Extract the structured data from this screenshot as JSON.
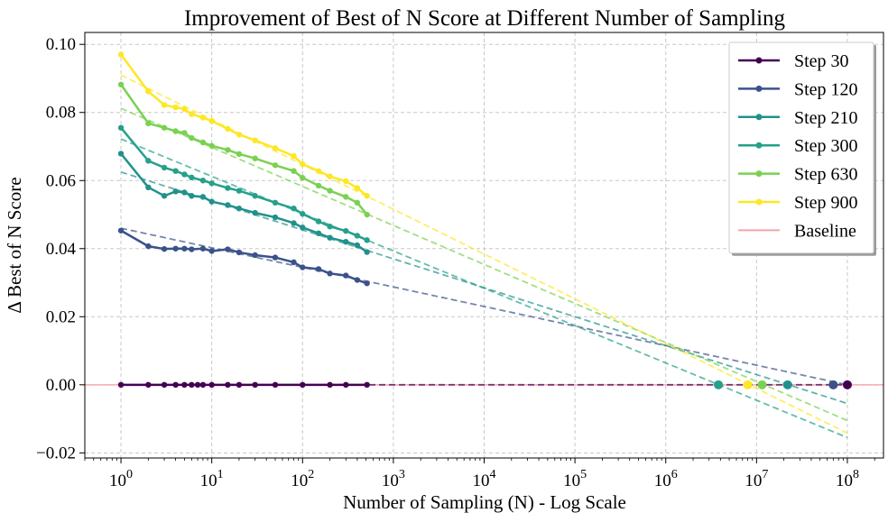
{
  "chart_data": {
    "type": "line",
    "title": "Improvement of Best of N Score at Different Number of Sampling",
    "xlabel": "Number of Sampling (N) - Log Scale",
    "ylabel": "Δ Best of N Score",
    "xscale": "log",
    "xlim": [
      0.4,
      250000000
    ],
    "ylim": [
      -0.0215,
      0.1035
    ],
    "xticks": [
      {
        "value": 1,
        "base": "10",
        "exp": "0"
      },
      {
        "value": 10,
        "base": "10",
        "exp": "1"
      },
      {
        "value": 100,
        "base": "10",
        "exp": "2"
      },
      {
        "value": 1000,
        "base": "10",
        "exp": "3"
      },
      {
        "value": 10000,
        "base": "10",
        "exp": "4"
      },
      {
        "value": 100000,
        "base": "10",
        "exp": "5"
      },
      {
        "value": 1000000,
        "base": "10",
        "exp": "6"
      },
      {
        "value": 10000000,
        "base": "10",
        "exp": "7"
      },
      {
        "value": 100000000,
        "base": "10",
        "exp": "8"
      }
    ],
    "yticks": [
      {
        "value": -0.02,
        "label": "−0.02"
      },
      {
        "value": 0.0,
        "label": "0.00"
      },
      {
        "value": 0.02,
        "label": "0.02"
      },
      {
        "value": 0.04,
        "label": "0.04"
      },
      {
        "value": 0.06,
        "label": "0.06"
      },
      {
        "value": 0.08,
        "label": "0.08"
      },
      {
        "value": 0.1,
        "label": "0.10"
      }
    ],
    "grid": true,
    "legend_position": "top-right",
    "series": [
      {
        "name": "Step 30",
        "color": "#440154",
        "x": [
          1,
          2,
          3,
          4,
          5,
          6,
          7,
          8,
          10,
          15,
          20,
          30,
          50,
          100,
          200,
          300,
          512
        ],
        "y": [
          0,
          0,
          0,
          0,
          0,
          0,
          0,
          0,
          0,
          0,
          0,
          0,
          0,
          0,
          0,
          0,
          0
        ],
        "fit": {
          "x": [
            1,
            100000000
          ],
          "y": [
            0,
            0
          ]
        },
        "crossing": {
          "x": 100000000,
          "y": 0
        }
      },
      {
        "name": "Step 120",
        "color": "#3b528b",
        "x": [
          1,
          2,
          3,
          4,
          5,
          6,
          8,
          10,
          15,
          20,
          30,
          50,
          80,
          100,
          150,
          200,
          300,
          400,
          512
        ],
        "y": [
          0.0453,
          0.0407,
          0.0399,
          0.04,
          0.04,
          0.0398,
          0.04,
          0.0393,
          0.0398,
          0.0389,
          0.0381,
          0.0374,
          0.036,
          0.0345,
          0.034,
          0.0327,
          0.0321,
          0.0308,
          0.0298
        ],
        "fit": {
          "x": [
            1,
            100000000
          ],
          "y": [
            0.046,
            0.0
          ]
        },
        "crossing": {
          "x": 70000000,
          "y": 0
        }
      },
      {
        "name": "Step 210",
        "color": "#21918c",
        "x": [
          1,
          2,
          3,
          4,
          5,
          6,
          8,
          10,
          15,
          20,
          30,
          50,
          80,
          100,
          150,
          200,
          300,
          400,
          512
        ],
        "y": [
          0.0679,
          0.058,
          0.0555,
          0.0568,
          0.0565,
          0.0555,
          0.0552,
          0.0538,
          0.0528,
          0.0518,
          0.0505,
          0.0492,
          0.0475,
          0.0462,
          0.0445,
          0.0432,
          0.042,
          0.041,
          0.039
        ],
        "fit": {
          "x": [
            1,
            100000000
          ],
          "y": [
            0.0625,
            -0.0055
          ]
        },
        "crossing": {
          "x": 22000000,
          "y": 0
        }
      },
      {
        "name": "Step 300",
        "color": "#25a08a",
        "x": [
          1,
          2,
          3,
          4,
          5,
          6,
          8,
          10,
          15,
          20,
          30,
          50,
          80,
          100,
          150,
          200,
          300,
          400,
          512
        ],
        "y": [
          0.0755,
          0.0658,
          0.0638,
          0.0628,
          0.0618,
          0.0609,
          0.06,
          0.0592,
          0.0578,
          0.057,
          0.0555,
          0.0535,
          0.0518,
          0.0502,
          0.048,
          0.0465,
          0.0452,
          0.0438,
          0.0425
        ],
        "fit": {
          "x": [
            1,
            100000000
          ],
          "y": [
            0.0722,
            -0.0155
          ]
        },
        "crossing": {
          "x": 3800000,
          "y": 0
        }
      },
      {
        "name": "Step 630",
        "color": "#7ad151",
        "x": [
          1,
          2,
          3,
          4,
          5,
          6,
          8,
          10,
          15,
          20,
          30,
          50,
          80,
          100,
          150,
          200,
          300,
          400,
          512
        ],
        "y": [
          0.0882,
          0.0768,
          0.0755,
          0.0745,
          0.074,
          0.0725,
          0.0712,
          0.0702,
          0.069,
          0.0678,
          0.0665,
          0.0645,
          0.0628,
          0.0608,
          0.0585,
          0.057,
          0.0552,
          0.0535,
          0.05
        ],
        "fit": {
          "x": [
            1,
            100000000
          ],
          "y": [
            0.0812,
            -0.0105
          ]
        },
        "crossing": {
          "x": 11500000,
          "y": 0
        }
      },
      {
        "name": "Step 900",
        "color": "#fde725",
        "x": [
          1,
          2,
          3,
          4,
          5,
          6,
          8,
          10,
          15,
          20,
          30,
          50,
          80,
          100,
          150,
          200,
          300,
          400,
          512
        ],
        "y": [
          0.097,
          0.0862,
          0.0822,
          0.0815,
          0.081,
          0.0795,
          0.0785,
          0.0775,
          0.0752,
          0.0735,
          0.0718,
          0.0695,
          0.0672,
          0.0648,
          0.0628,
          0.0612,
          0.0598,
          0.0578,
          0.0555
        ],
        "fit": {
          "x": [
            1,
            100000000
          ],
          "y": [
            0.091,
            -0.0142
          ]
        },
        "crossing": {
          "x": 8000000,
          "y": 0
        }
      }
    ],
    "baseline": {
      "name": "Baseline",
      "value": 0,
      "color": "#f4a3a8"
    }
  }
}
